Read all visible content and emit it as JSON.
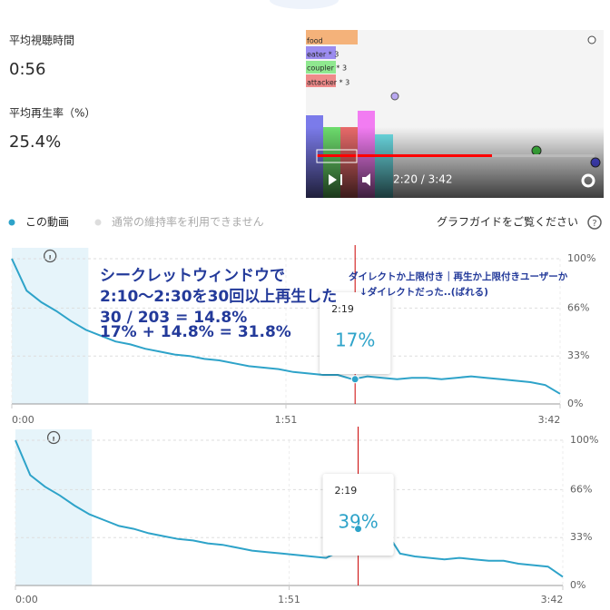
{
  "header": {
    "avg_watch_label": "平均視聴時間",
    "avg_watch": "0:56",
    "avg_rate_label": "平均再生率（%）",
    "avg_rate": "25.4%"
  },
  "video": {
    "labels": [
      "food",
      "eater * 3",
      "coupler * 3",
      "attacker * 3"
    ],
    "time": "2:20 / 3:42"
  },
  "legend": {
    "typical": "通常の維持率を利用できません",
    "guide": "グラフガイドをご覧ください"
  },
  "annotations": {
    "left": [
      "シークレットウィンドウで",
      "2:10～2:30を30回以上再生した",
      "30 / 203 = 14.8%",
      "17% + 14.8% = 31.8%"
    ],
    "right": [
      "ダイレクトか上限付き｜再生か上限付きユーザーか",
      "↓ダイレクトだった..(ばれる)"
    ]
  },
  "chart_data": [
    {
      "type": "line",
      "x": [
        0,
        6,
        12,
        18,
        24,
        30,
        36,
        42,
        48,
        54,
        60,
        66,
        72,
        78,
        84,
        90,
        96,
        102,
        108,
        114,
        120,
        126,
        132,
        138,
        144,
        150,
        156,
        162,
        168,
        174,
        180,
        186,
        192,
        198,
        204,
        210,
        216,
        222
      ],
      "series": [
        {
          "name": "この動画",
          "color": "#2ea3c9",
          "values": [
            100,
            78,
            70,
            64,
            57,
            51,
            47,
            43,
            41,
            38,
            36,
            34,
            33,
            31,
            30,
            28,
            26,
            25,
            24,
            22,
            21,
            20,
            20,
            17,
            19,
            18,
            17,
            18,
            18,
            17,
            18,
            19,
            18,
            17,
            16,
            15,
            13,
            7
          ]
        }
      ],
      "xlim": [
        0,
        222
      ],
      "xticks": [
        {
          "value": 0,
          "label": "0:00"
        },
        {
          "value": 111,
          "label": "1:51"
        },
        {
          "value": 222,
          "label": "3:42"
        }
      ],
      "ylim": [
        0,
        100
      ],
      "yticks": [
        {
          "value": 100,
          "label": "100%"
        },
        {
          "value": 66,
          "label": "66%"
        },
        {
          "value": 33,
          "label": "33%"
        },
        {
          "value": 0,
          "label": "0%"
        }
      ],
      "grid": true,
      "highlight": [
        0,
        31
      ],
      "tooltip": {
        "x": 139,
        "label": "2:19",
        "value": 17,
        "value_label": "17%"
      }
    },
    {
      "type": "line",
      "x": [
        0,
        6,
        12,
        18,
        24,
        30,
        36,
        42,
        48,
        54,
        60,
        66,
        72,
        78,
        84,
        90,
        96,
        102,
        108,
        114,
        120,
        126,
        132,
        138,
        144,
        150,
        156,
        162,
        168,
        174,
        180,
        186,
        192,
        198,
        204,
        210,
        216,
        222
      ],
      "series": [
        {
          "color": "#2ea3c9",
          "values": [
            100,
            76,
            68,
            62,
            55,
            49,
            45,
            41,
            39,
            36,
            34,
            32,
            31,
            29,
            28,
            26,
            24,
            23,
            22,
            21,
            20,
            19,
            24,
            39,
            39,
            38,
            22,
            20,
            19,
            18,
            19,
            18,
            17,
            17,
            15,
            14,
            13,
            6
          ]
        }
      ],
      "xlim": [
        0,
        222
      ],
      "xticks": [
        {
          "value": 0,
          "label": "0:00"
        },
        {
          "value": 111,
          "label": "1:51"
        },
        {
          "value": 222,
          "label": "3:42"
        }
      ],
      "ylim": [
        0,
        100
      ],
      "yticks": [
        {
          "value": 100,
          "label": "100%"
        },
        {
          "value": 66,
          "label": "66%"
        },
        {
          "value": 33,
          "label": "33%"
        },
        {
          "value": 0,
          "label": "0%"
        }
      ],
      "grid": true,
      "highlight": [
        0,
        31
      ],
      "tooltip": {
        "x": 139,
        "label": "2:19",
        "value": 39,
        "value_label": "39%"
      }
    }
  ]
}
